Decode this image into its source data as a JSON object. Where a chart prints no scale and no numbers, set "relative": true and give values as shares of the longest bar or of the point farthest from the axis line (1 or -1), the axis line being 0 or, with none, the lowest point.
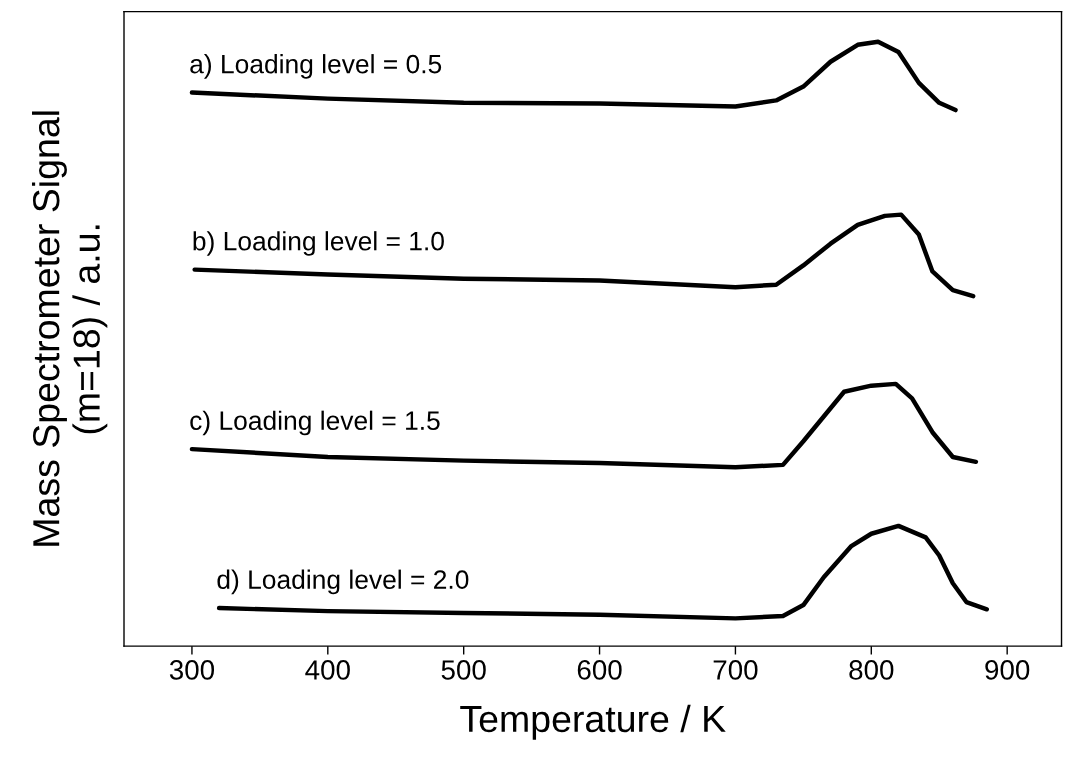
{
  "chart_data": {
    "type": "line",
    "relative": true,
    "xlabel": "Temperature / K",
    "ylabel": "Mass Spectrometer Signal\n(m=18) / a.u.",
    "xlim": [
      250,
      940
    ],
    "xticks": [
      300,
      400,
      500,
      600,
      700,
      800,
      900
    ],
    "grid": false,
    "legend": false,
    "marker": "none",
    "line_style": "solid",
    "series": [
      {
        "name": "a) Loading level = 0.5",
        "color": "#000000",
        "x": [
          300,
          400,
          500,
          600,
          700,
          730,
          750,
          770,
          790,
          805,
          820,
          835,
          850,
          862
        ],
        "values": [
          0.916,
          0.906,
          0.899,
          0.898,
          0.893,
          0.903,
          0.926,
          0.967,
          0.995,
          1.0,
          0.983,
          0.932,
          0.899,
          0.887
        ]
      },
      {
        "name": "b) Loading level = 1.0",
        "color": "#000000",
        "x": [
          302,
          400,
          500,
          600,
          700,
          730,
          750,
          770,
          790,
          810,
          822,
          835,
          845,
          860,
          875
        ],
        "values": [
          0.623,
          0.615,
          0.608,
          0.605,
          0.594,
          0.598,
          0.63,
          0.666,
          0.697,
          0.712,
          0.714,
          0.681,
          0.62,
          0.589,
          0.579
        ]
      },
      {
        "name": "c) Loading level = 1.5",
        "color": "#000000",
        "x": [
          300,
          400,
          500,
          600,
          700,
          735,
          750,
          765,
          780,
          800,
          818,
          830,
          845,
          860,
          877
        ],
        "values": [
          0.326,
          0.313,
          0.307,
          0.303,
          0.296,
          0.3,
          0.339,
          0.38,
          0.421,
          0.431,
          0.434,
          0.41,
          0.354,
          0.313,
          0.305
        ]
      },
      {
        "name": "d) Loading level = 2.0",
        "color": "#000000",
        "x": [
          320,
          400,
          500,
          600,
          700,
          735,
          750,
          765,
          785,
          800,
          820,
          840,
          850,
          860,
          870,
          885
        ],
        "values": [
          0.063,
          0.058,
          0.055,
          0.052,
          0.046,
          0.05,
          0.068,
          0.114,
          0.165,
          0.186,
          0.199,
          0.18,
          0.15,
          0.104,
          0.073,
          0.061
        ]
      }
    ]
  }
}
